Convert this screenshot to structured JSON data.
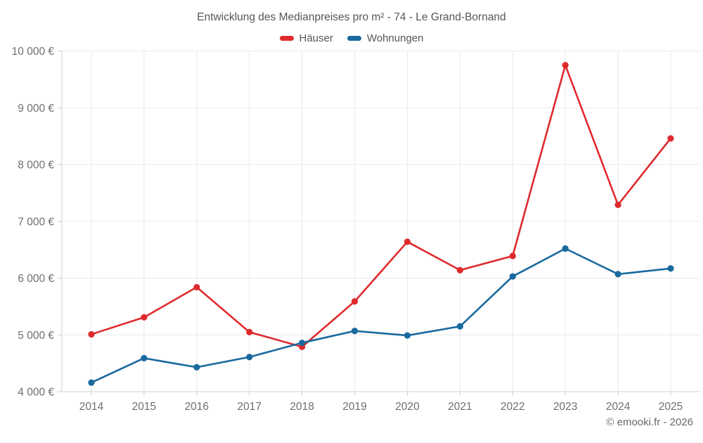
{
  "title": "Entwicklung des Medianpreises pro m² - 74 - Le Grand-Bornand",
  "footer": "© emooki.fr - 2026",
  "colors": {
    "hauser": "#df2a2e",
    "wohnungen": "#19699e",
    "grid": "#e9e9e9",
    "axis": "#cfcfcf",
    "title_text": "#575757",
    "tick_text": "#6f6f6f"
  },
  "chart_data": {
    "type": "line",
    "categories": [
      "2014",
      "2015",
      "2016",
      "2017",
      "2018",
      "2019",
      "2020",
      "2021",
      "2022",
      "2023",
      "2024",
      "2025"
    ],
    "series": [
      {
        "name": "Häuser",
        "color": "#df2a2e",
        "values": [
          5010,
          5310,
          5840,
          5050,
          4790,
          5590,
          6640,
          6140,
          6390,
          9750,
          7290,
          8460
        ]
      },
      {
        "name": "Wohnungen",
        "color": "#19699e",
        "values": [
          4160,
          4590,
          4430,
          4610,
          4860,
          5070,
          4990,
          5150,
          6030,
          6520,
          6070,
          6170
        ]
      }
    ],
    "title": "Entwicklung des Medianpreises pro m² - 74 - Le Grand-Bornand",
    "xlabel": "",
    "ylabel": "",
    "ylim": [
      4000,
      10000
    ],
    "ytick_step": 1000,
    "ytick_labels": [
      "4 000 €",
      "5 000 €",
      "6 000 €",
      "7 000 €",
      "8 000 €",
      "9 000 €",
      "10 000 €"
    ],
    "grid": true,
    "legend_position": "top"
  }
}
